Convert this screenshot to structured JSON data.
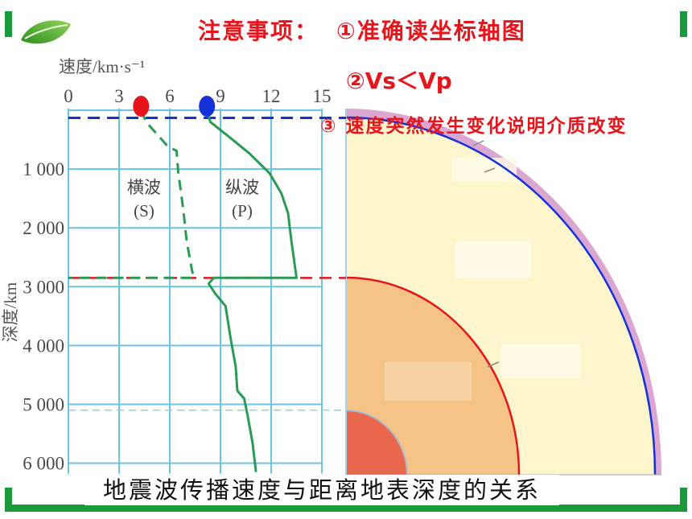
{
  "notes": {
    "heading": "注意事项：",
    "item1": "①准确读坐标轴图",
    "item2": "②Vs＜Vp",
    "item3": "③ 速度突然发生变化说明介质改变"
  },
  "icons": {
    "corner_leaf": "leaf-icon"
  },
  "colors": {
    "frame": "#1a9a3a",
    "note_text": "#e8141b",
    "grid": "#6cc3e3",
    "wave_line": "#2a9b55",
    "crust": "#dba6d2",
    "mantle": "#fdf6cc",
    "outer_core": "#f6c386",
    "inner_core": "#e9684d"
  },
  "chart_data": {
    "type": "line",
    "title": "地震波传播速度与距离地表深度的关系",
    "xlabel": "速度/km·s⁻¹",
    "ylabel": "深度/km",
    "xlim": [
      0,
      15
    ],
    "ylim": [
      0,
      6150
    ],
    "y_axis_direction": "downward",
    "grid": true,
    "x_ticks": [
      0,
      3,
      6,
      9,
      12,
      15
    ],
    "y_ticks": [
      {
        "value": 1000,
        "label": "1 000"
      },
      {
        "value": 2000,
        "label": "2 000"
      },
      {
        "value": 3000,
        "label": "3 000"
      },
      {
        "value": 4000,
        "label": "4 000"
      },
      {
        "value": 5000,
        "label": "5 000"
      },
      {
        "value": 6000,
        "label": "6 000"
      }
    ],
    "series": [
      {
        "label_lines": [
          "横波",
          "(S)"
        ],
        "style": "dashed",
        "x": [
          4.3,
          4.6,
          5.9,
          6.4,
          6.5,
          6.8,
          7.0,
          7.4,
          0
        ],
        "y": [
          0,
          200,
          620,
          690,
          1050,
          1690,
          2230,
          2850,
          2850
        ]
      },
      {
        "label_lines": [
          "纵波",
          "(P)"
        ],
        "style": "solid",
        "x": [
          8.2,
          8.4,
          9.5,
          10.7,
          11.9,
          12.6,
          13.0,
          13.2,
          13.5,
          8.6,
          8.3,
          8.7,
          9.3,
          9.6,
          9.9,
          10.0,
          10.4,
          10.6,
          10.9,
          11.1
        ],
        "y": [
          0,
          200,
          450,
          730,
          1070,
          1410,
          1750,
          2230,
          2850,
          2850,
          2950,
          3120,
          3330,
          3880,
          4360,
          4770,
          4900,
          5180,
          5660,
          6150
        ]
      }
    ],
    "markers": [
      {
        "x": 4.3,
        "y": 0,
        "color": "#e8141b"
      },
      {
        "x": 8.2,
        "y": 0,
        "color": "#1432d8"
      }
    ],
    "reference_lines": [
      {
        "y": 130,
        "color": "#1432d8",
        "style": "dashed"
      },
      {
        "y": 2850,
        "color": "#e8141b",
        "style": "dashed"
      },
      {
        "y": 5100,
        "color": "#8fd3ea",
        "style": "dashed"
      }
    ]
  }
}
